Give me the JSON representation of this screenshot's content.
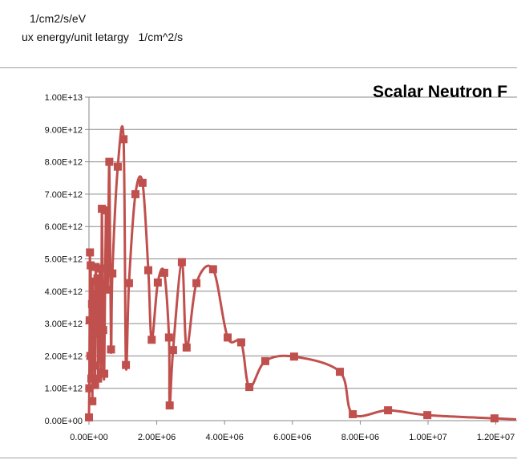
{
  "sheet": {
    "cell_unit_1": "1/cm2/s/eV",
    "cell_unit_2": "ux energy/unit letargy   1/cm^2/s"
  },
  "chart_data": {
    "type": "scatter",
    "title": "Scalar Neutron F",
    "xlabel": "",
    "ylabel": "",
    "xlim": [
      0,
      12600000
    ],
    "ylim": [
      0,
      10000000000000
    ],
    "grid": true,
    "smoothed_line": true,
    "marker": "square",
    "color": "#c0504d",
    "x_ticks": [
      0,
      2000000,
      4000000,
      6000000,
      8000000,
      10000000,
      12000000
    ],
    "x_tick_labels": [
      "0.00E+00",
      "2.00E+06",
      "4.00E+06",
      "6.00E+06",
      "8.00E+06",
      "1.00E+07",
      "1.20E+07"
    ],
    "y_ticks": [
      0,
      1000000000000.0,
      2000000000000.0,
      3000000000000.0,
      4000000000000.0,
      5000000000000.0,
      6000000000000.0,
      7000000000000.0,
      8000000000000.0,
      9000000000000.0,
      10000000000000.0
    ],
    "y_tick_labels": [
      "0.00E+00",
      "1.00E+12",
      "2.00E+12",
      "3.00E+12",
      "4.00E+12",
      "5.00E+12",
      "6.00E+12",
      "7.00E+12",
      "8.00E+12",
      "9.00E+12",
      "1.00E+13"
    ],
    "series": [
      {
        "x": [
          0,
          10000,
          20000,
          30000,
          40000,
          50000,
          70000,
          90000,
          100000,
          120000,
          140000,
          160000,
          180000,
          200000,
          220000,
          250000,
          270000,
          300000,
          330000,
          360000,
          380000,
          420000,
          450000,
          500000,
          550000,
          600000,
          650000,
          690000,
          850000,
          1020000,
          1090000,
          1180000,
          1370000,
          1580000,
          1750000,
          1850000,
          2030000,
          2220000,
          2360000,
          2380000,
          2480000,
          2740000,
          2880000,
          3170000,
          3660000,
          4090000,
          4490000,
          4730000,
          5200000,
          6050000,
          7400000,
          7780000,
          8820000,
          9980000,
          11960000,
          12600000
        ],
        "y": [
          100000000000.0,
          1000000000000.0,
          3100000000000.0,
          5200000000000.0,
          2000000000000.0,
          4800000000000.0,
          1300000000000.0,
          3600000000000.0,
          600000000000.0,
          4300000000000.0,
          1700000000000.0,
          3900000000000.0,
          1100000000000.0,
          4750000000000.0,
          2700000000000.0,
          4400000000000.0,
          1300000000000.0,
          3000000000000.0,
          4700000000000.0,
          1500000000000.0,
          6550000000000.0,
          2800000000000.0,
          1450000000000.0,
          6500000000000.0,
          4050000000000.0,
          8000000000000.0,
          2200000000000.0,
          4550000000000.0,
          7850000000000.0,
          8700000000000.0,
          1720000000000.0,
          4250000000000.0,
          7000000000000.0,
          7350000000000.0,
          4650000000000.0,
          2500000000000.0,
          4270000000000.0,
          4570000000000.0,
          2570000000000.0,
          470000000000.0,
          2180000000000.0,
          4900000000000.0,
          2260000000000.0,
          4250000000000.0,
          4680000000000.0,
          2570000000000.0,
          2420000000000.0,
          1040000000000.0,
          1840000000000.0,
          1980000000000.0,
          1510000000000.0,
          200000000000.0,
          320000000000.0,
          170000000000.0,
          70000000000.0,
          40000000000.0
        ]
      }
    ]
  }
}
